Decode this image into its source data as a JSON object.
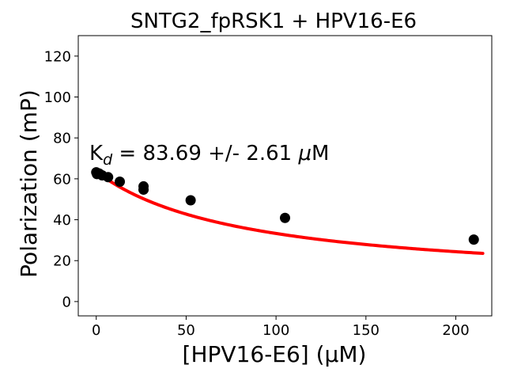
{
  "chart_data": {
    "type": "scatter",
    "title": "SNTG2_fpRSK1 + HPV16-E6",
    "xlabel": "[HPV16-E6] (μM)",
    "ylabel": "Polarization (mP)",
    "xlim": [
      -10,
      220
    ],
    "ylim": [
      -7,
      130
    ],
    "xticks": [
      "0",
      "50",
      "100",
      "150",
      "200"
    ],
    "yticks": [
      "0",
      "20",
      "40",
      "60",
      "80",
      "100",
      "120"
    ],
    "annotation": {
      "prefix": "K",
      "subscript": "d",
      "text": " = 83.69 +/- 2.61 ",
      "mu": "μ",
      "unit": "M"
    },
    "points_color": "#000000",
    "fit_color": "#ff0000",
    "series": [
      {
        "kind": "points",
        "x": [
          0,
          0.4,
          1.6,
          3.3,
          6.6,
          13.1,
          26.3,
          26.3,
          52.5,
          105,
          210
        ],
        "y": [
          63.2,
          62.3,
          62.6,
          61.7,
          60.8,
          58.6,
          56.3,
          54.7,
          49.5,
          40.9,
          30.3
        ]
      },
      {
        "kind": "fit",
        "model": "single-site binding",
        "Kd": 83.69,
        "top": 63.5,
        "bottom": 8.0,
        "x_range": [
          0,
          215
        ]
      }
    ],
    "grid": false,
    "legend": "none"
  }
}
